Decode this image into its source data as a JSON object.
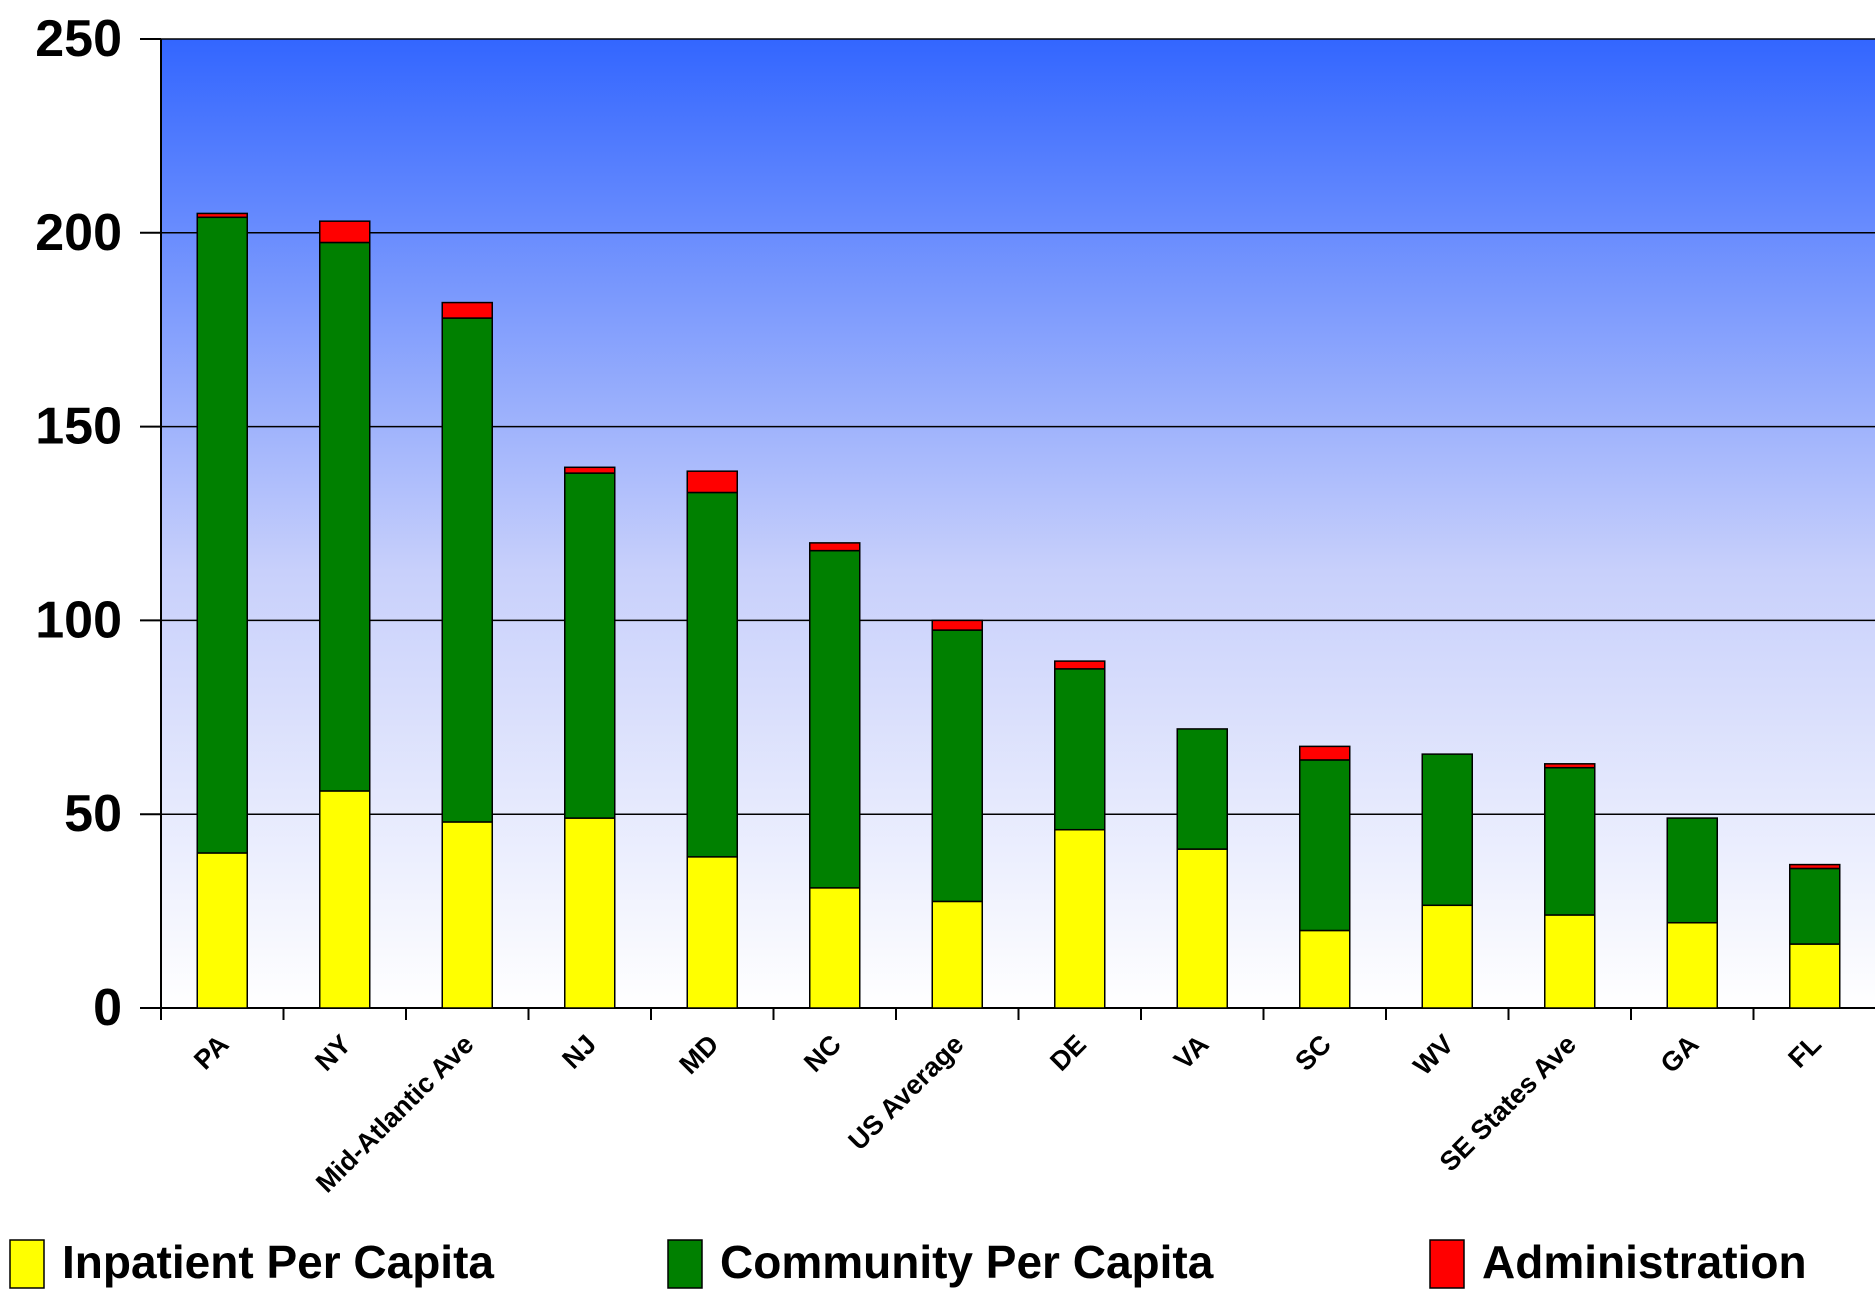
{
  "chart_data": {
    "type": "stacked_bar",
    "categories": [
      "PA",
      "NY",
      "Mid-Atlantic Ave",
      "NJ",
      "MD",
      "NC",
      "US Average",
      "DE",
      "VA",
      "SC",
      "WV",
      "SE States Ave",
      "GA",
      "FL"
    ],
    "series": [
      {
        "name": "Inpatient Per Capita",
        "color": "#ffff00",
        "values": [
          40,
          56,
          48,
          49,
          39,
          31,
          27.5,
          46,
          41,
          20,
          26.5,
          24,
          22,
          16.5
        ]
      },
      {
        "name": "Community Per Capita",
        "color": "#008000",
        "values": [
          164,
          141.5,
          130,
          89,
          94,
          87,
          70,
          41.5,
          31,
          44,
          39,
          38,
          27,
          19.5
        ]
      },
      {
        "name": "Administration",
        "color": "#ff0000",
        "values": [
          1,
          5.5,
          4,
          1.5,
          5.5,
          2,
          2.5,
          2,
          0,
          3.5,
          0,
          1,
          0,
          1
        ]
      }
    ],
    "ylim": [
      0,
      250
    ],
    "yticks": [
      0,
      50,
      100,
      150,
      200,
      250
    ],
    "grid": true
  }
}
